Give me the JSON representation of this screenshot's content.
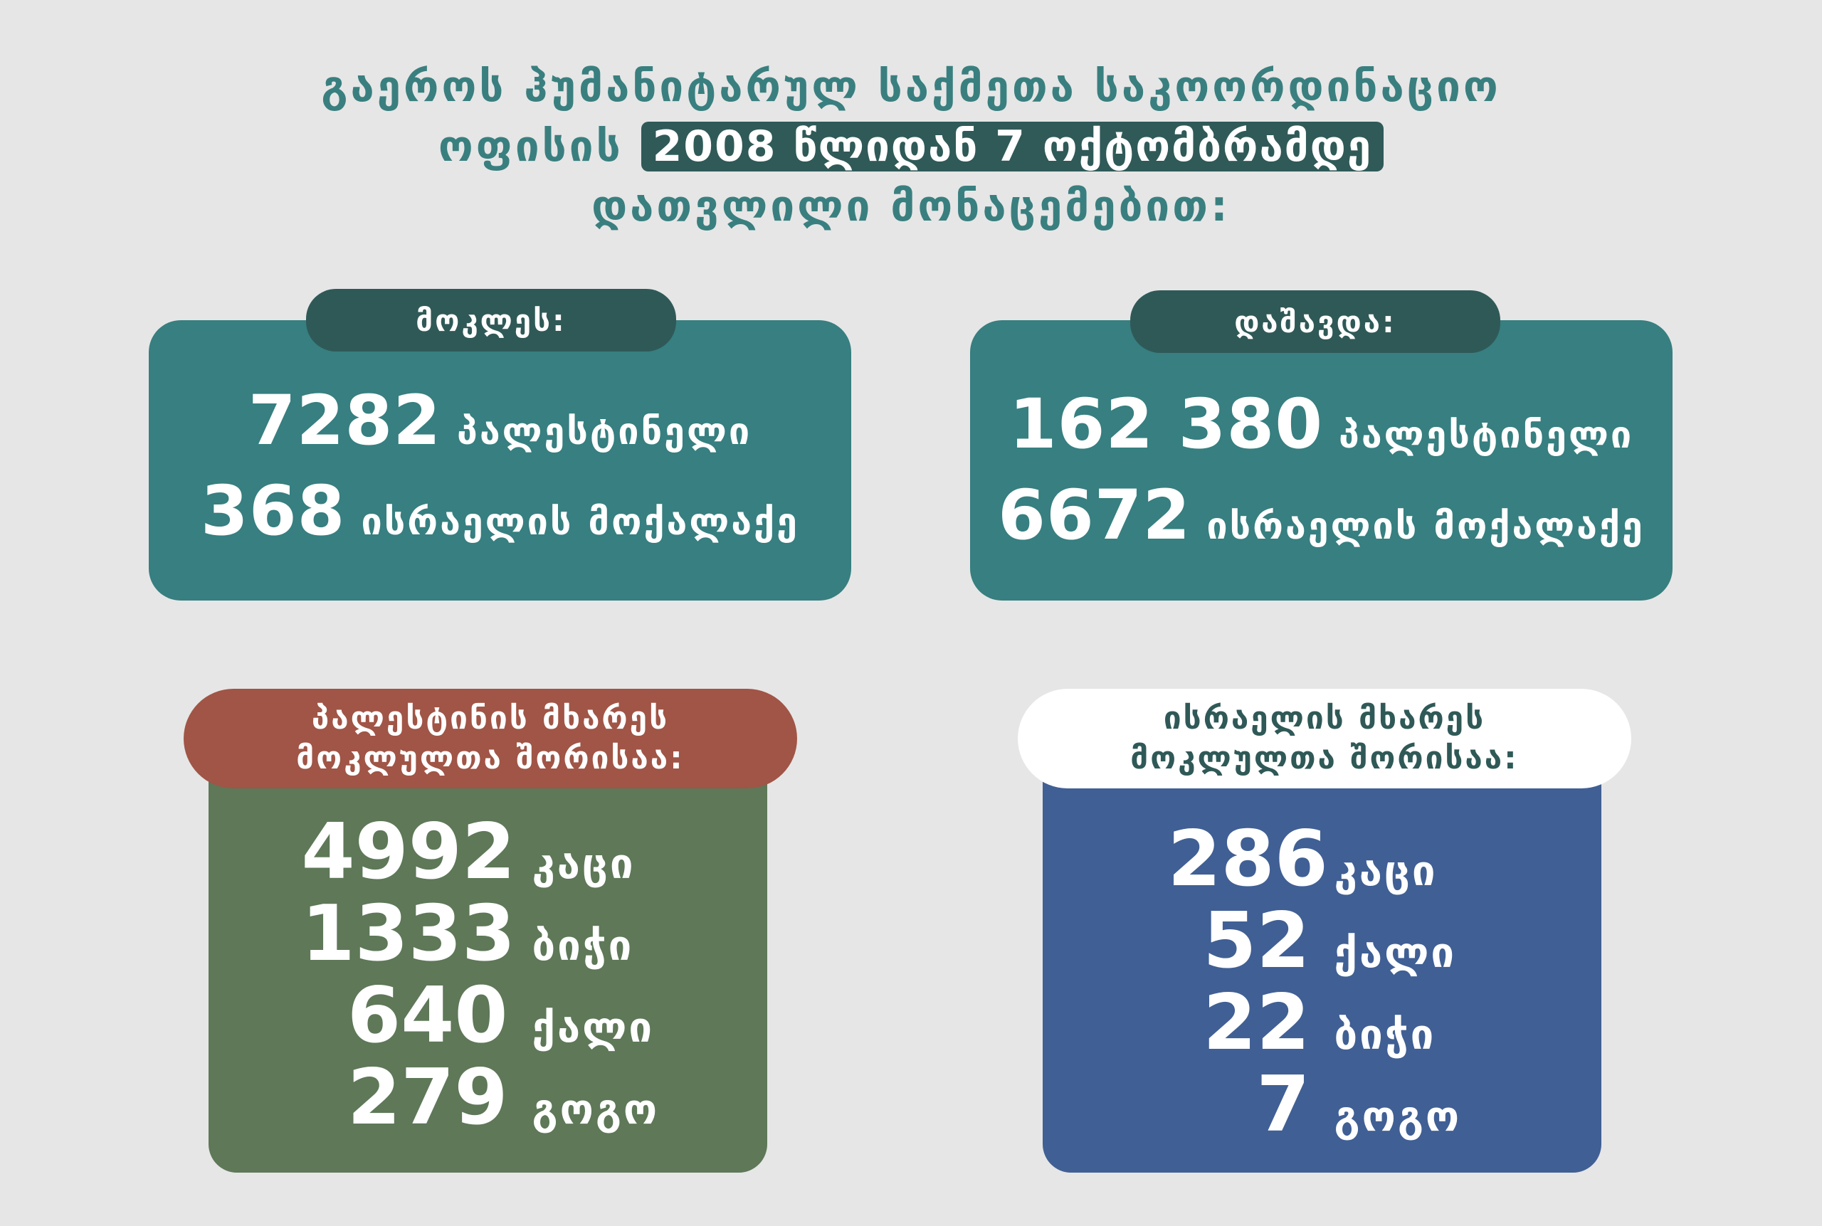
{
  "header": {
    "line1": "გაეროს ჰუმანიტარულ საქმეთა საკოორდინაციო",
    "line2_prefix": "ოფისის",
    "line2_highlight": "2008 წლიდან 7 ოქტომბრამდე",
    "line3": "დათვლილი მონაცემებით:"
  },
  "killed": {
    "tab": "მოკლეს:",
    "rows": [
      {
        "number": "7282",
        "label": "პალესტინელი"
      },
      {
        "number": "368",
        "label": "ისრაელის მოქალაქე"
      }
    ]
  },
  "injured": {
    "tab": "დაშავდა:",
    "rows": [
      {
        "number": "162 380",
        "label": "პალესტინელი"
      },
      {
        "number": "6672",
        "label": "ისრაელის მოქალაქე"
      }
    ]
  },
  "palestine": {
    "tab_line1": "პალესტინის მხარეს",
    "tab_line2": "მოკლულთა შორისაა:",
    "rows": [
      {
        "number": "4992",
        "label": "კაცი"
      },
      {
        "number": "1333",
        "label": "ბიჭი"
      },
      {
        "number": "640",
        "label": "ქალი"
      },
      {
        "number": "279",
        "label": "გოგო"
      }
    ]
  },
  "israel": {
    "tab_line1": "ისრაელის მხარეს",
    "tab_line2": "მოკლულთა შორისაა:",
    "rows": [
      {
        "number": "286",
        "label": "კაცი"
      },
      {
        "number": "52",
        "label": "ქალი"
      },
      {
        "number": "22",
        "label": "ბიჭი"
      },
      {
        "number": "7",
        "label": "გოგო"
      }
    ]
  },
  "colors": {
    "background": "#e6e6e6",
    "teal": "#377f80",
    "dark_teal": "#2f5957",
    "red": "#a05546",
    "green": "#5e7858",
    "blue": "#405f94",
    "white": "#ffffff"
  }
}
